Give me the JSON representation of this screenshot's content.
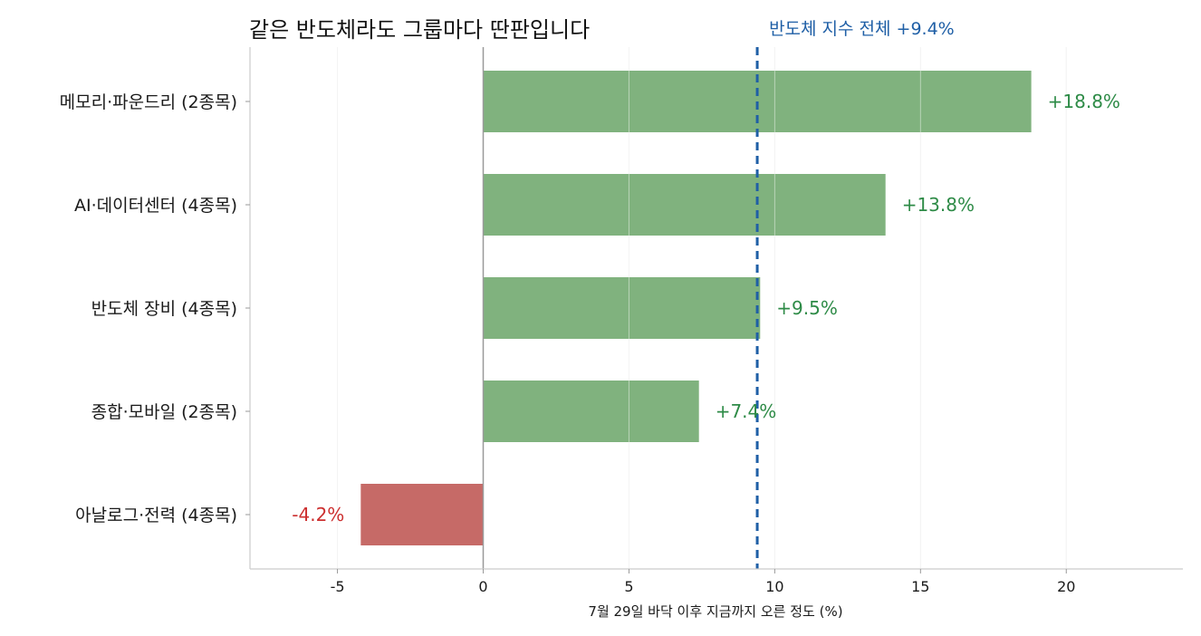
{
  "chart_data": {
    "type": "bar",
    "orientation": "horizontal",
    "title": "같은 반도체라도 그룹마다 딴판입니다",
    "xlabel": "7월 29일 바닥 이후 지금까지 오른 정도 (%)",
    "ylabel": "",
    "xlim": [
      -8,
      24
    ],
    "xticks": [
      -5,
      0,
      5,
      10,
      15,
      20
    ],
    "xtick_labels": [
      "-5",
      "0",
      "5",
      "10",
      "15",
      "20"
    ],
    "grid": "vertical",
    "categories": [
      "메모리·파운드리 (2종목)",
      "AI·데이터센터 (4종목)",
      "반도체 장비 (4종목)",
      "종합·모바일 (2종목)",
      "아날로그·전력 (4종목)"
    ],
    "values": [
      18.8,
      13.8,
      9.5,
      7.4,
      -4.2
    ],
    "value_labels": [
      "+18.8%",
      "+13.8%",
      "+9.5%",
      "+7.4%",
      "-4.2%"
    ],
    "reference_line": {
      "value": 9.4,
      "label": "반도체 지수 전체 +9.4%",
      "style": "dashed"
    },
    "colors": {
      "positive": "#80b27e",
      "negative": "#c66a67",
      "positive_text": "#2e8b47",
      "negative_text": "#cc2f2f",
      "reference": "#1f5fa6"
    }
  }
}
